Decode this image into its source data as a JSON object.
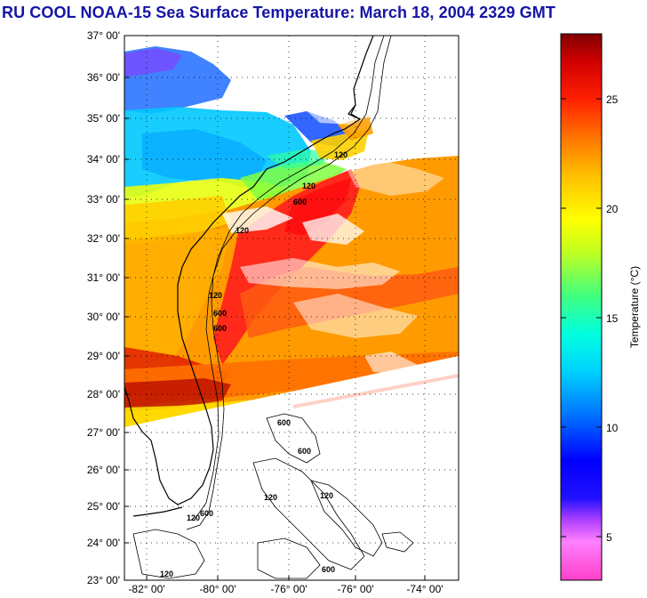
{
  "title": "RU COOL  NOAA-15  Sea Surface Temperature:  March 18, 2004 2329 GMT",
  "map": {
    "lat_labels": [
      "37° 00'",
      "36° 00'",
      "35° 00'",
      "34° 00'",
      "33° 00'",
      "32° 00'",
      "31° 00'",
      "30° 00'",
      "29° 00'",
      "28° 00'",
      "27° 00'",
      "26° 00'",
      "25° 00'",
      "24° 00'",
      "23° 00'"
    ],
    "lon_labels": [
      "-82° 00'",
      "-80° 00'",
      "-76° 00'",
      "-76° 00'",
      "-74° 00'"
    ],
    "contour_labels": [
      "120",
      "120",
      "600",
      "120",
      "120",
      "600",
      "600",
      "600",
      "120",
      "120",
      "600",
      "120",
      "120",
      "600",
      "600"
    ]
  },
  "colorbar": {
    "label": "Temperature (°C)",
    "ticks": [
      "25",
      "20",
      "15",
      "10",
      "5"
    ],
    "tick_values": [
      25,
      20,
      15,
      10,
      5
    ],
    "range": [
      3,
      28
    ],
    "colors": [
      "#ff40c8",
      "#ff80ff",
      "#b040ff",
      "#6020ff",
      "#0000ff",
      "#0060ff",
      "#00b0ff",
      "#00e0ff",
      "#00ffd0",
      "#40ff80",
      "#a0ff40",
      "#e0ff00",
      "#ffff00",
      "#ffd000",
      "#ffa000",
      "#ff7000",
      "#ff3000",
      "#ff0000",
      "#d00000",
      "#900000"
    ]
  }
}
